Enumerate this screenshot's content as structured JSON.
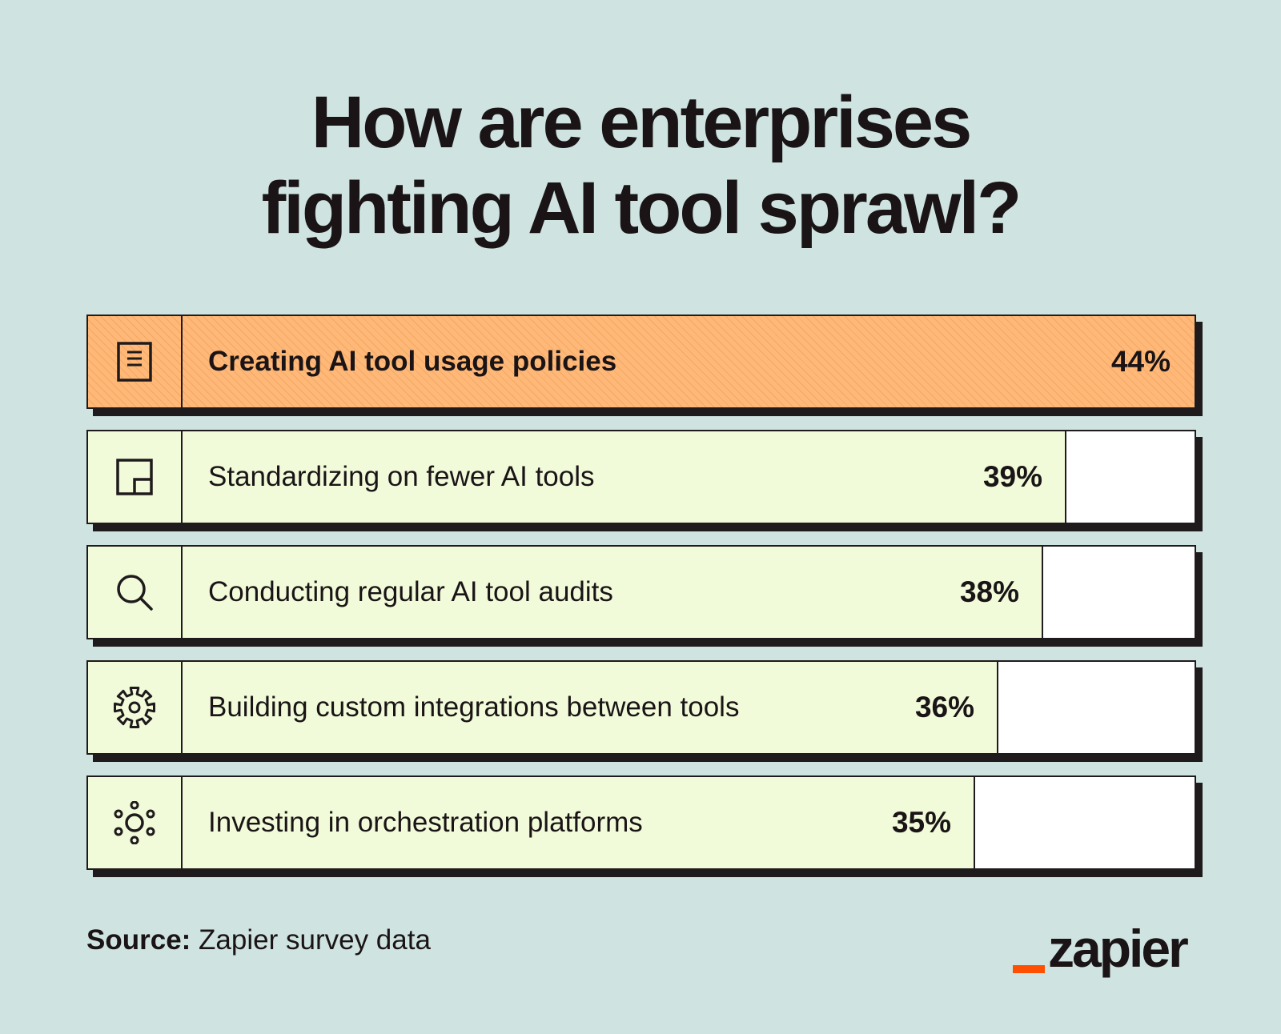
{
  "title_lines": [
    "How are enterprises",
    "fighting AI tool sprawl?"
  ],
  "colors": {
    "background": "#cfe3e0",
    "highlight_fill": "#ffb877",
    "bar_fill": "#f1fbd9",
    "remainder": "#ffffff",
    "outline": "#1f1a1c",
    "brand_accent": "#ff4f00"
  },
  "chart_data": {
    "type": "bar",
    "orientation": "horizontal",
    "title": "How are enterprises fighting AI tool sprawl?",
    "unit": "%",
    "xlim": [
      0,
      100
    ],
    "categories": [
      "Creating AI tool usage policies",
      "Standardizing on fewer AI tools",
      "Conducting regular AI tool audits",
      "Building custom integrations between tools",
      "Investing in orchestration platforms"
    ],
    "values": [
      44,
      39,
      38,
      36,
      35
    ],
    "value_labels": [
      "44%",
      "39%",
      "38%",
      "36%",
      "35%"
    ],
    "icons": [
      "document-icon",
      "layout-icon",
      "search-icon",
      "gear-icon",
      "orchestration-icon"
    ],
    "highlighted_index": 0
  },
  "source": {
    "label": "Source:",
    "text": "Zapier survey data"
  },
  "brand": {
    "name": "zapier"
  }
}
